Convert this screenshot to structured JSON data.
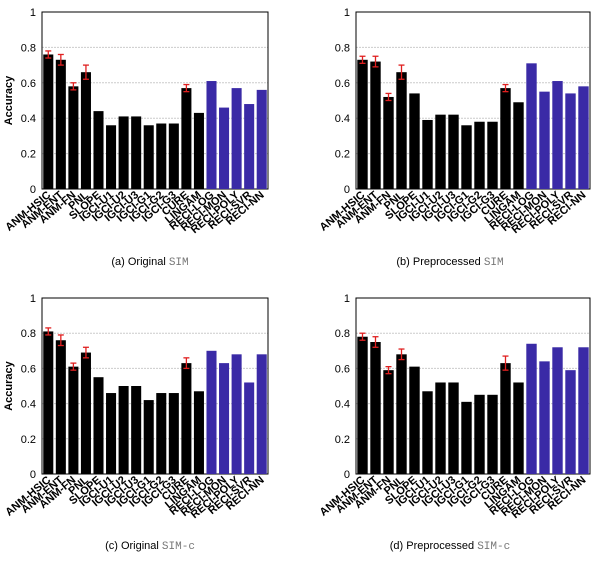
{
  "chart_data": [
    {
      "type": "bar",
      "ylabel": "Accuracy",
      "caption": "(a) Original",
      "caption_dataset": "SIM",
      "categories": [
        "ANM-HSIC",
        "ANM-ENT",
        "ANM-FN",
        "PNL",
        "SLOPE",
        "IGCI-U1",
        "IGCI-U2",
        "IGCI-U3",
        "IGCI-G1",
        "IGCI-G2",
        "IGCI-G3",
        "CURE",
        "LINGAM",
        "RECI-LOG",
        "RECI-MON",
        "RECI-POLY",
        "RECI-SVR",
        "RECI-NN"
      ],
      "values": [
        0.76,
        0.73,
        0.58,
        0.66,
        0.44,
        0.36,
        0.41,
        0.41,
        0.36,
        0.37,
        0.37,
        0.57,
        0.43,
        0.61,
        0.46,
        0.57,
        0.48,
        0.56
      ],
      "errors": [
        0.02,
        0.03,
        0.02,
        0.04,
        null,
        null,
        null,
        null,
        null,
        null,
        null,
        0.02,
        null,
        null,
        null,
        null,
        null,
        null
      ],
      "colors": [
        "#000",
        "#000",
        "#000",
        "#000",
        "#000",
        "#000",
        "#000",
        "#000",
        "#000",
        "#000",
        "#000",
        "#000",
        "#000",
        "#3a2aa6",
        "#3a2aa6",
        "#3a2aa6",
        "#3a2aa6",
        "#3a2aa6"
      ],
      "error_color": "#e02020",
      "ylim": [
        0,
        1
      ],
      "yticks": [
        0,
        0.2,
        0.4,
        0.6,
        0.8,
        1
      ],
      "grid": true
    },
    {
      "type": "bar",
      "caption": "(b) Preprocessed",
      "caption_dataset": "SIM",
      "categories": [
        "ANM-HSIC",
        "ANM-ENT",
        "ANM-FN",
        "PNL",
        "SLOPE",
        "IGCI-U1",
        "IGCI-U2",
        "IGCI-U3",
        "IGCI-G1",
        "IGCI-G2",
        "IGCI-G3",
        "CURE",
        "LINGAM",
        "RECI-LOG",
        "RECI-MON",
        "RECI-POLY",
        "RECI-SVR",
        "RECI-NN"
      ],
      "values": [
        0.73,
        0.72,
        0.52,
        0.66,
        0.54,
        0.39,
        0.42,
        0.42,
        0.36,
        0.38,
        0.38,
        0.57,
        0.49,
        0.71,
        0.55,
        0.61,
        0.54,
        0.58
      ],
      "errors": [
        0.02,
        0.03,
        0.02,
        0.04,
        null,
        null,
        null,
        null,
        null,
        null,
        null,
        0.02,
        null,
        null,
        null,
        null,
        null,
        null
      ],
      "colors": [
        "#000",
        "#000",
        "#000",
        "#000",
        "#000",
        "#000",
        "#000",
        "#000",
        "#000",
        "#000",
        "#000",
        "#000",
        "#000",
        "#3a2aa6",
        "#3a2aa6",
        "#3a2aa6",
        "#3a2aa6",
        "#3a2aa6"
      ],
      "error_color": "#e02020",
      "ylim": [
        0,
        1
      ],
      "yticks": [
        0,
        0.2,
        0.4,
        0.6,
        0.8,
        1
      ],
      "grid": true
    },
    {
      "type": "bar",
      "ylabel": "Accuracy",
      "caption": "(c) Original",
      "caption_dataset": "SIM-c",
      "categories": [
        "ANM-HSIC",
        "ANM-ENT",
        "ANM-FN",
        "PNL",
        "SLOPE",
        "IGCI-U1",
        "IGCI-U2",
        "IGCI-U3",
        "IGCI-G1",
        "IGCI-G2",
        "IGCI-G3",
        "CURE",
        "LINGAM",
        "RECI-LOG",
        "RECI-MON",
        "RECI-POLY",
        "RECI-SVR",
        "RECI-NN"
      ],
      "values": [
        0.81,
        0.76,
        0.61,
        0.69,
        0.55,
        0.46,
        0.5,
        0.5,
        0.42,
        0.46,
        0.46,
        0.63,
        0.47,
        0.7,
        0.63,
        0.68,
        0.52,
        0.68
      ],
      "errors": [
        0.02,
        0.03,
        0.02,
        0.03,
        null,
        null,
        null,
        null,
        null,
        null,
        null,
        0.03,
        null,
        null,
        null,
        null,
        null,
        null
      ],
      "colors": [
        "#000",
        "#000",
        "#000",
        "#000",
        "#000",
        "#000",
        "#000",
        "#000",
        "#000",
        "#000",
        "#000",
        "#000",
        "#000",
        "#3a2aa6",
        "#3a2aa6",
        "#3a2aa6",
        "#3a2aa6",
        "#3a2aa6"
      ],
      "error_color": "#e02020",
      "ylim": [
        0,
        1
      ],
      "yticks": [
        0,
        0.2,
        0.4,
        0.6,
        0.8,
        1
      ],
      "grid": true
    },
    {
      "type": "bar",
      "caption": "(d) Preprocessed",
      "caption_dataset": "SIM-c",
      "categories": [
        "ANM-HSIC",
        "ANM-ENT",
        "ANM-FN",
        "PNL",
        "SLOPE",
        "IGCI-U1",
        "IGCI-U2",
        "IGCI-U3",
        "IGCI-G1",
        "IGCI-G2",
        "IGCI-G3",
        "CURE",
        "LINGAM",
        "RECI-LOG",
        "RECI-MON",
        "RECI-POLY",
        "RECI-SVR",
        "RECI-NN"
      ],
      "values": [
        0.78,
        0.75,
        0.59,
        0.68,
        0.61,
        0.47,
        0.52,
        0.52,
        0.41,
        0.45,
        0.45,
        0.63,
        0.52,
        0.74,
        0.64,
        0.72,
        0.59,
        0.72
      ],
      "errors": [
        0.02,
        0.03,
        0.02,
        0.03,
        null,
        null,
        null,
        null,
        null,
        null,
        null,
        0.04,
        null,
        null,
        null,
        null,
        null,
        null
      ],
      "colors": [
        "#000",
        "#000",
        "#000",
        "#000",
        "#000",
        "#000",
        "#000",
        "#000",
        "#000",
        "#000",
        "#000",
        "#000",
        "#000",
        "#3a2aa6",
        "#3a2aa6",
        "#3a2aa6",
        "#3a2aa6",
        "#3a2aa6"
      ],
      "error_color": "#e02020",
      "ylim": [
        0,
        1
      ],
      "yticks": [
        0,
        0.2,
        0.4,
        0.6,
        0.8,
        1
      ],
      "grid": true
    }
  ]
}
